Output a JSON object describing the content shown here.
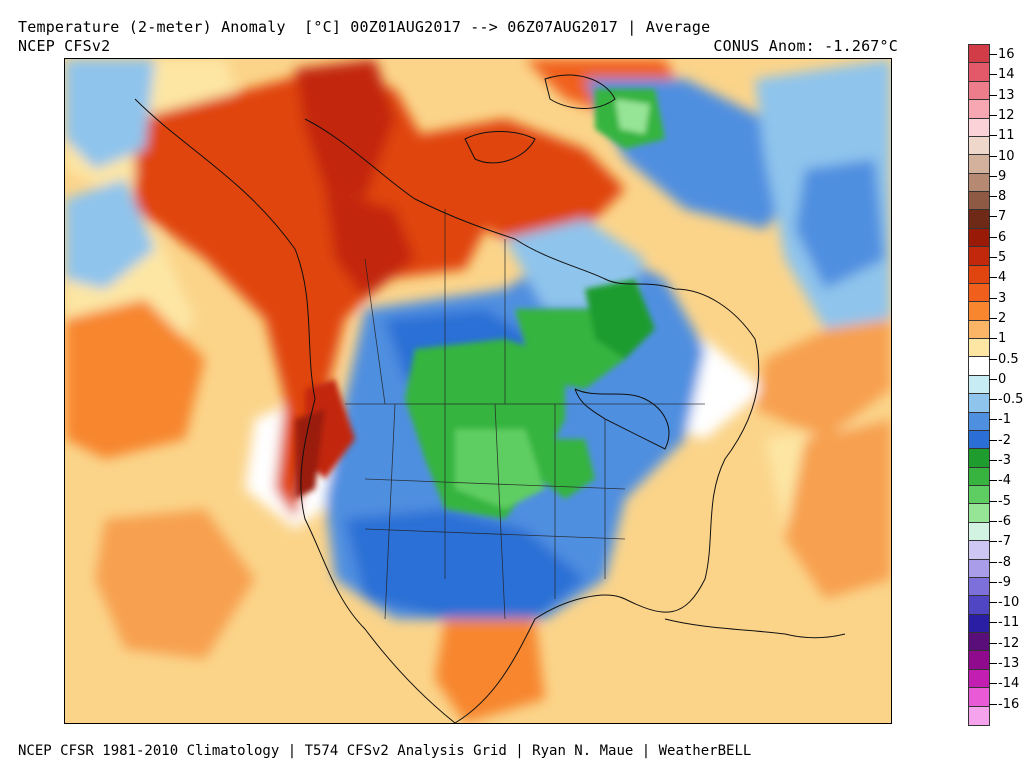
{
  "header": {
    "title": "Temperature (2-meter) Anomaly  [°C] 00Z01AUG2017 --> 06Z07AUG2017 | Average",
    "model": "NCEP CFSv2",
    "conus_anomaly": "CONUS Anom: -1.267°C"
  },
  "footer": {
    "credits": "NCEP CFSR 1981-2010 Climatology | T574 CFSv2 Analysis Grid | Ryan N. Maue | WeatherBELL"
  },
  "legend": {
    "labels": [
      "16",
      "14",
      "13",
      "12",
      "11",
      "10",
      "9",
      "8",
      "7",
      "6",
      "5",
      "4",
      "3",
      "2",
      "1",
      "0.5",
      "0",
      "-0.5",
      "-1",
      "-2",
      "-3",
      "-4",
      "-5",
      "-6",
      "-7",
      "-8",
      "-9",
      "-10",
      "-11",
      "-12",
      "-13",
      "-14",
      "-16"
    ],
    "colors": [
      "#d23c46",
      "#e3596a",
      "#ee7d8c",
      "#f6a7b1",
      "#fbd2d7",
      "#efd7cc",
      "#d4b19d",
      "#b68a72",
      "#8e5a43",
      "#6e2a16",
      "#9a1a08",
      "#c2280c",
      "#e0440f",
      "#f0601c",
      "#f7862f",
      "#fcb566",
      "#fde6a4",
      "#ffffff",
      "#c8ecf4",
      "#8fc4ec",
      "#4f8fe0",
      "#2b6fd6",
      "#1f9c2e",
      "#36b43f",
      "#5ece62",
      "#96e496",
      "#d3f3e2",
      "#cfc7f3",
      "#a99ce8",
      "#7d70db",
      "#5046c4",
      "#2a1ea5",
      "#5a0e7a",
      "#8f0a8c",
      "#c21fb2",
      "#e85ad6",
      "#f6a3ee"
    ]
  },
  "map": {
    "region": "North America"
  }
}
